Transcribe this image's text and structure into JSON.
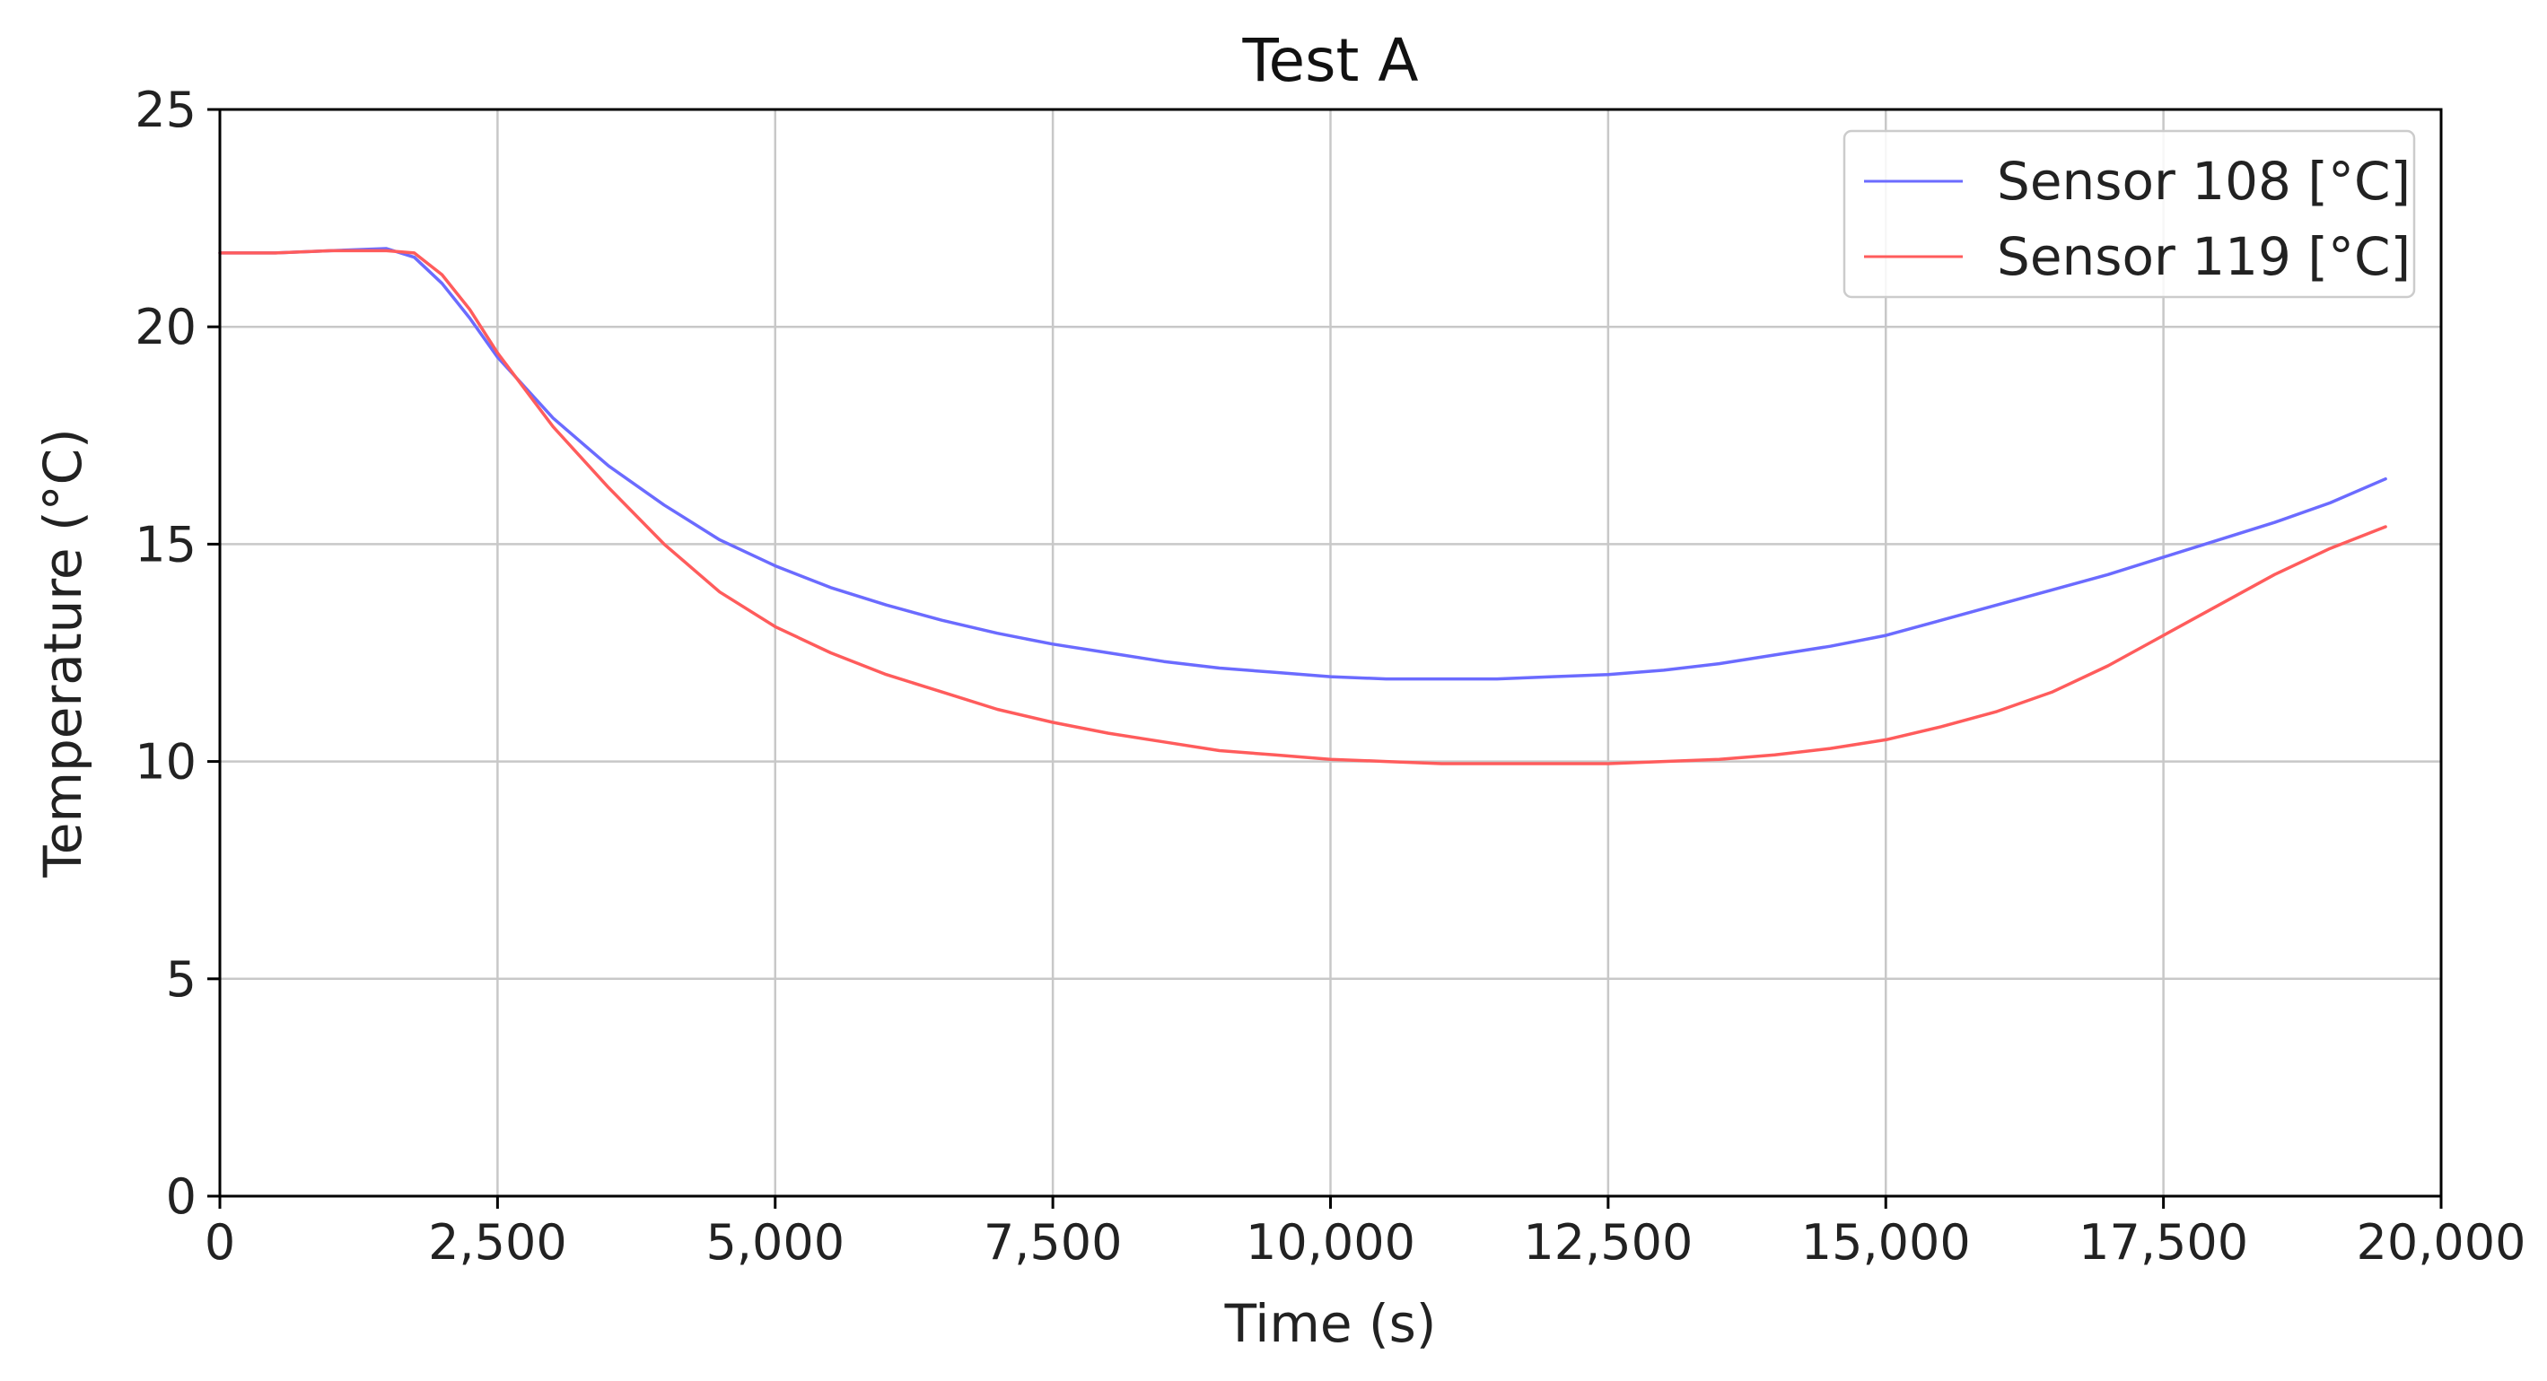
{
  "chart_data": {
    "type": "line",
    "title": "Test A",
    "xlabel": "Time (s)",
    "ylabel": "Temperature (°C)",
    "xlim": [
      0,
      20000
    ],
    "ylim": [
      0,
      25
    ],
    "x_ticks": [
      0,
      2500,
      5000,
      7500,
      10000,
      12500,
      15000,
      17500,
      20000
    ],
    "x_tick_labels": [
      "0",
      "2,500",
      "5,000",
      "7,500",
      "10,000",
      "12,500",
      "15,000",
      "17,500",
      "20,000"
    ],
    "y_ticks": [
      0,
      5,
      10,
      15,
      20,
      25
    ],
    "y_tick_labels": [
      "0",
      "5",
      "10",
      "15",
      "20",
      "25"
    ],
    "grid": true,
    "legend_position": "top-right",
    "series": [
      {
        "name": "Sensor 108 [°C]",
        "color": "#6b6bff",
        "x": [
          0,
          500,
          1000,
          1500,
          1750,
          2000,
          2250,
          2500,
          3000,
          3500,
          4000,
          4500,
          5000,
          5500,
          6000,
          6500,
          7000,
          7500,
          8000,
          8500,
          9000,
          9500,
          10000,
          10500,
          11000,
          11500,
          12000,
          12500,
          13000,
          13500,
          14000,
          14500,
          15000,
          15500,
          16000,
          16500,
          17000,
          17500,
          18000,
          18500,
          19000,
          19500
        ],
        "y": [
          21.7,
          21.7,
          21.75,
          21.8,
          21.6,
          21.0,
          20.2,
          19.3,
          17.9,
          16.8,
          15.9,
          15.1,
          14.5,
          14.0,
          13.6,
          13.25,
          12.95,
          12.7,
          12.5,
          12.3,
          12.15,
          12.05,
          11.95,
          11.9,
          11.9,
          11.9,
          11.95,
          12.0,
          12.1,
          12.25,
          12.45,
          12.65,
          12.9,
          13.25,
          13.6,
          13.95,
          14.3,
          14.7,
          15.1,
          15.5,
          15.95,
          16.5
        ]
      },
      {
        "name": "Sensor 119 [°C]",
        "color": "#ff5c5c",
        "x": [
          0,
          500,
          1000,
          1500,
          1750,
          2000,
          2250,
          2500,
          3000,
          3500,
          4000,
          4500,
          5000,
          5500,
          6000,
          6500,
          7000,
          7500,
          8000,
          8500,
          9000,
          9500,
          10000,
          10500,
          11000,
          11500,
          12000,
          12500,
          13000,
          13500,
          14000,
          14500,
          15000,
          15500,
          16000,
          16500,
          17000,
          17500,
          18000,
          18500,
          19000,
          19500
        ],
        "y": [
          21.7,
          21.7,
          21.75,
          21.75,
          21.7,
          21.2,
          20.4,
          19.4,
          17.7,
          16.3,
          15.0,
          13.9,
          13.1,
          12.5,
          12.0,
          11.6,
          11.2,
          10.9,
          10.65,
          10.45,
          10.25,
          10.15,
          10.05,
          10.0,
          9.95,
          9.95,
          9.95,
          9.95,
          10.0,
          10.05,
          10.15,
          10.3,
          10.5,
          10.8,
          11.15,
          11.6,
          12.2,
          12.9,
          13.6,
          14.3,
          14.9,
          15.4
        ]
      }
    ]
  }
}
